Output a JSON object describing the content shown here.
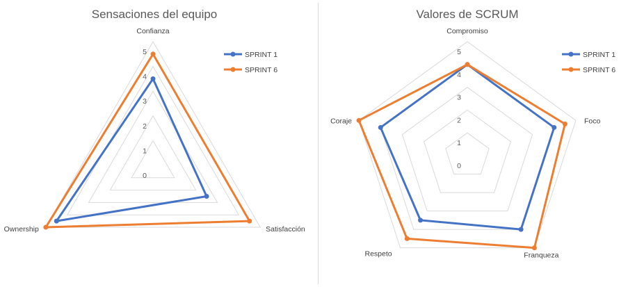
{
  "colors": {
    "sprint1": "#4472C4",
    "sprint6": "#ED7D31",
    "grid": "#d9d9d9",
    "text": "#595959"
  },
  "chart_data": [
    {
      "type": "radar",
      "title": "Sensaciones del equipo",
      "categories": [
        "Confianza",
        "Satisfacción",
        "Ownership"
      ],
      "range": [
        0,
        5
      ],
      "ticks": [
        "0",
        "1",
        "2",
        "3",
        "4",
        "5"
      ],
      "legend_position": "top-right",
      "series": [
        {
          "name": "SPRINT 1",
          "color": "#4472C4",
          "values": [
            3.5,
            2.5,
            4.5
          ]
        },
        {
          "name": "SPRINT 6",
          "color": "#ED7D31",
          "values": [
            4.5,
            4.5,
            5
          ]
        }
      ]
    },
    {
      "type": "radar",
      "title": "Valores de SCRUM",
      "categories": [
        "Compromiso",
        "Foco",
        "Franqueza",
        "Respeto",
        "Coraje"
      ],
      "range": [
        0,
        5
      ],
      "ticks": [
        "0",
        "1",
        "2",
        "3",
        "4",
        "5"
      ],
      "legend_position": "top-right",
      "series": [
        {
          "name": "SPRINT 1",
          "color": "#4472C4",
          "values": [
            4,
            4,
            4,
            3.5,
            4
          ]
        },
        {
          "name": "SPRINT 6",
          "color": "#ED7D31",
          "values": [
            4,
            4.5,
            5,
            4.5,
            5
          ]
        }
      ]
    }
  ]
}
